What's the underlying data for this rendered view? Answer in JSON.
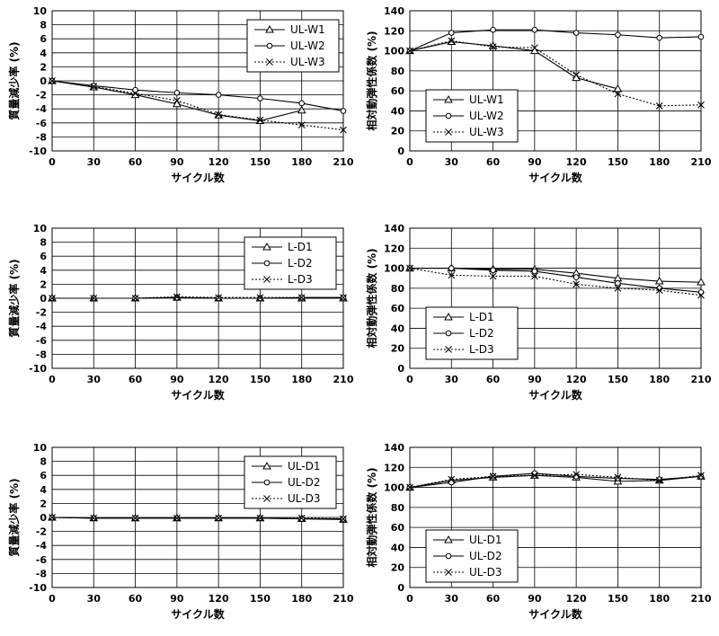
{
  "chart_data": [
    {
      "type": "line",
      "xlabel": "サイクル数",
      "ylabel": "質量減少率 (%)",
      "x": [
        0,
        30,
        60,
        90,
        120,
        150,
        180,
        210
      ],
      "ylim": [
        -10,
        10
      ],
      "yticks": [
        10,
        8,
        6,
        4,
        2,
        0,
        -2,
        -4,
        -6,
        -8,
        -10
      ],
      "grid": true,
      "legend_position": "top-right",
      "series": [
        {
          "name": "UL-W1",
          "marker": "triangle",
          "dash": "solid",
          "values": [
            0,
            -0.9,
            -2,
            -3.3,
            -4.9,
            -5.7,
            -4.2,
            null
          ]
        },
        {
          "name": "UL-W2",
          "marker": "circle",
          "dash": "solid",
          "values": [
            0,
            -0.7,
            -1.3,
            -1.7,
            -2,
            -2.5,
            -3.2,
            -4.3
          ]
        },
        {
          "name": "UL-W3",
          "marker": "x",
          "dash": "dotted",
          "values": [
            0,
            -0.8,
            -1.8,
            -2.8,
            -4.8,
            -5.6,
            -6.3,
            -7
          ]
        }
      ]
    },
    {
      "type": "line",
      "xlabel": "サイクル数",
      "ylabel": "相対動弾性係数 (%)",
      "x": [
        0,
        30,
        60,
        90,
        120,
        150,
        180,
        210
      ],
      "ylim": [
        0,
        140
      ],
      "yticks": [
        140,
        120,
        100,
        80,
        60,
        40,
        20,
        0
      ],
      "grid": true,
      "legend_position": "bottom-left",
      "series": [
        {
          "name": "UL-W1",
          "marker": "triangle",
          "dash": "solid",
          "values": [
            100,
            109,
            105,
            100,
            73,
            62,
            null,
            null
          ]
        },
        {
          "name": "UL-W2",
          "marker": "circle",
          "dash": "solid",
          "values": [
            100,
            118,
            121,
            121,
            118,
            116,
            113,
            114
          ]
        },
        {
          "name": "UL-W3",
          "marker": "x",
          "dash": "dotted",
          "values": [
            100,
            110,
            104,
            103,
            76,
            57,
            45,
            46
          ]
        }
      ]
    },
    {
      "type": "line",
      "xlabel": "サイクル数",
      "ylabel": "質量減少率 (%)",
      "x": [
        0,
        30,
        60,
        90,
        120,
        150,
        180,
        210
      ],
      "ylim": [
        -10,
        10
      ],
      "yticks": [
        10,
        8,
        6,
        4,
        2,
        0,
        -2,
        -4,
        -6,
        -8,
        -10
      ],
      "grid": true,
      "legend_position": "top-right",
      "series": [
        {
          "name": "L-D1",
          "marker": "triangle",
          "dash": "solid",
          "values": [
            0,
            0,
            0,
            0.1,
            0,
            0,
            0,
            0
          ]
        },
        {
          "name": "L-D2",
          "marker": "circle",
          "dash": "solid",
          "values": [
            0,
            0,
            0,
            0.1,
            0,
            0,
            0.1,
            0.1
          ]
        },
        {
          "name": "L-D3",
          "marker": "x",
          "dash": "dotted",
          "values": [
            0,
            0,
            0,
            0.2,
            0.1,
            0.1,
            0.1,
            0.1
          ]
        }
      ]
    },
    {
      "type": "line",
      "xlabel": "サイクル数",
      "ylabel": "相対動弾性係数 (%)",
      "x": [
        0,
        30,
        60,
        90,
        120,
        150,
        180,
        210
      ],
      "ylim": [
        0,
        140
      ],
      "yticks": [
        140,
        120,
        100,
        80,
        60,
        40,
        20,
        0
      ],
      "grid": true,
      "legend_position": "bottom-left",
      "series": [
        {
          "name": "L-D1",
          "marker": "triangle",
          "dash": "solid",
          "values": [
            100,
            100,
            99,
            99,
            95,
            90,
            87,
            86
          ]
        },
        {
          "name": "L-D2",
          "marker": "circle",
          "dash": "solid",
          "values": [
            100,
            100,
            98,
            97,
            91,
            85,
            80,
            76
          ]
        },
        {
          "name": "L-D3",
          "marker": "x",
          "dash": "dotted",
          "values": [
            100,
            93,
            92,
            92,
            84,
            80,
            78,
            73
          ]
        }
      ]
    },
    {
      "type": "line",
      "xlabel": "サイクル数",
      "ylabel": "質量減少率 (%)",
      "x": [
        0,
        30,
        60,
        90,
        120,
        150,
        180,
        210
      ],
      "ylim": [
        -10,
        10
      ],
      "yticks": [
        10,
        8,
        6,
        4,
        2,
        0,
        -2,
        -4,
        -6,
        -8,
        -10
      ],
      "grid": true,
      "legend_position": "top-right",
      "series": [
        {
          "name": "UL-D1",
          "marker": "triangle",
          "dash": "solid",
          "values": [
            0,
            -0.1,
            -0.1,
            -0.1,
            -0.1,
            -0.1,
            -0.2,
            -0.3
          ]
        },
        {
          "name": "UL-D2",
          "marker": "circle",
          "dash": "solid",
          "values": [
            0,
            -0.1,
            -0.1,
            -0.1,
            -0.1,
            -0.1,
            -0.2,
            -0.2
          ]
        },
        {
          "name": "UL-D3",
          "marker": "x",
          "dash": "dotted",
          "values": [
            0,
            -0.1,
            -0.1,
            -0.1,
            -0.1,
            -0.1,
            -0.1,
            -0.2
          ]
        }
      ]
    },
    {
      "type": "line",
      "xlabel": "サイクル数",
      "ylabel": "相対動弾性係数 (%)",
      "x": [
        0,
        30,
        60,
        90,
        120,
        150,
        180,
        210
      ],
      "ylim": [
        0,
        140
      ],
      "yticks": [
        140,
        120,
        100,
        80,
        60,
        40,
        20,
        0
      ],
      "grid": true,
      "legend_position": "bottom-left",
      "series": [
        {
          "name": "UL-D1",
          "marker": "triangle",
          "dash": "solid",
          "values": [
            100,
            107,
            110,
            112,
            110,
            106,
            107,
            111
          ]
        },
        {
          "name": "UL-D2",
          "marker": "circle",
          "dash": "solid",
          "values": [
            100,
            105,
            111,
            114,
            111,
            109,
            108,
            111
          ]
        },
        {
          "name": "UL-D3",
          "marker": "x",
          "dash": "dotted",
          "values": [
            100,
            108,
            111,
            112,
            113,
            110,
            107,
            112
          ]
        }
      ]
    }
  ]
}
